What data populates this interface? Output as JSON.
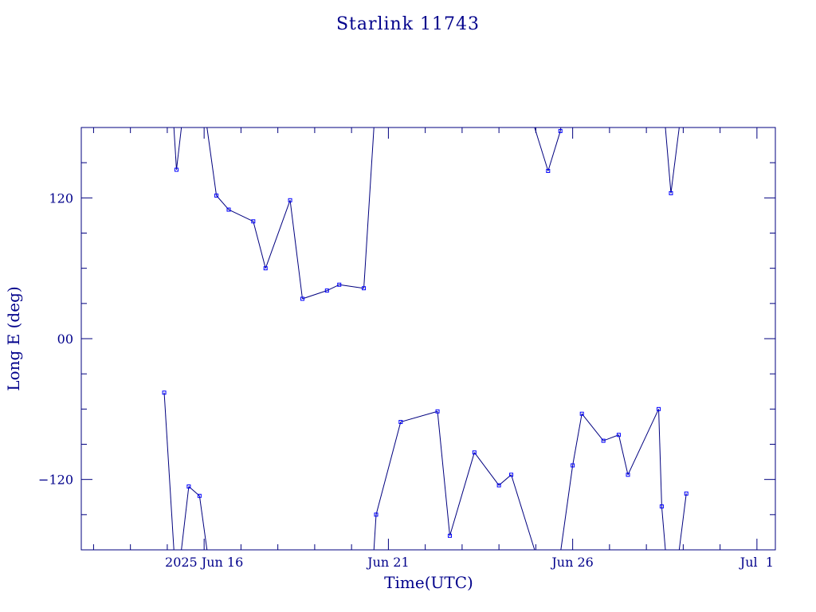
{
  "chart_data": {
    "type": "scatter",
    "title": "Starlink 11743",
    "xlabel": "Time(UTC)",
    "ylabel": "Long E (deg)",
    "x_unit": "date (UTC, 2025)",
    "xlim": [
      "2025-06-12T16:00",
      "2025-07-01T12:00"
    ],
    "ylim": [
      -180,
      180
    ],
    "x_ticks": [
      {
        "x": "2025-06-16",
        "label": "2025 Jun 16"
      },
      {
        "x": "2025-06-21",
        "label": "Jun 21"
      },
      {
        "x": "2025-06-26",
        "label": "Jun 26"
      },
      {
        "x": "2025-07-01",
        "label": "Jul  1"
      }
    ],
    "y_ticks": [
      {
        "y": 120,
        "label": "120"
      },
      {
        "y": 0,
        "label": "00"
      },
      {
        "y": -120,
        "label": "−120"
      }
    ],
    "line_style": "connected, wrapping at ±180",
    "series": [
      {
        "points": [
          [
            "2025-06-14T22:00",
            -46
          ],
          [
            "2025-06-15T06:00",
            144
          ],
          [
            "2025-06-15T14:00",
            -126
          ],
          [
            "2025-06-15T21:00",
            -134
          ],
          [
            "2025-06-16T08:00",
            122
          ],
          [
            "2025-06-16T16:00",
            110
          ],
          [
            "2025-06-17T08:00",
            100
          ],
          [
            "2025-06-17T16:00",
            60
          ],
          [
            "2025-06-18T08:00",
            118
          ],
          [
            "2025-06-18T16:00",
            34
          ],
          [
            "2025-06-19T08:00",
            41
          ],
          [
            "2025-06-19T16:00",
            46
          ],
          [
            "2025-06-20T08:00",
            43
          ],
          [
            "2025-06-20T16:00",
            -150
          ],
          [
            "2025-06-21T08:00",
            -71
          ],
          [
            "2025-06-22T08:00",
            -62
          ],
          [
            "2025-06-22T16:00",
            -168
          ],
          [
            "2025-06-23T08:00",
            -97
          ],
          [
            "2025-06-24T00:00",
            -125
          ],
          [
            "2025-06-24T08:00",
            -116
          ],
          [
            "2025-06-25T08:00",
            143
          ],
          [
            "2025-06-25T16:00",
            177
          ],
          [
            "2025-06-26T00:00",
            -108
          ],
          [
            "2025-06-26T06:00",
            -64
          ],
          [
            "2025-06-26T20:00",
            -87
          ],
          [
            "2025-06-27T06:00",
            -82
          ],
          [
            "2025-06-27T12:00",
            -116
          ],
          [
            "2025-06-28T08:00",
            -60
          ],
          [
            "2025-06-28T10:00",
            -143
          ],
          [
            "2025-06-28T16:00",
            124
          ],
          [
            "2025-06-29T02:00",
            -132
          ]
        ]
      }
    ]
  }
}
